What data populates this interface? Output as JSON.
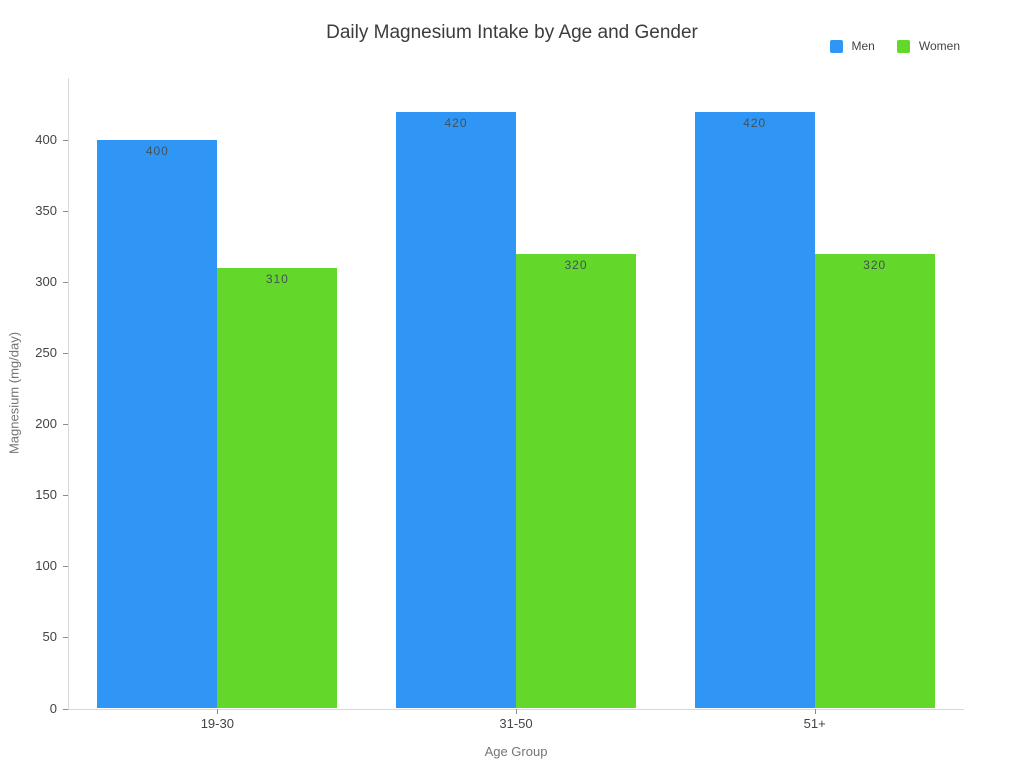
{
  "chart_data": {
    "type": "bar",
    "title": "Daily Magnesium Intake by Age and Gender",
    "xlabel": "Age Group",
    "ylabel": "Magnesium (mg/day)",
    "categories": [
      "19-30",
      "31-50",
      "51+"
    ],
    "series": [
      {
        "name": "Men",
        "color": "#3096F5",
        "values": [
          400,
          420,
          420
        ]
      },
      {
        "name": "Women",
        "color": "#63D82A",
        "values": [
          310,
          320,
          320
        ]
      }
    ],
    "bar_value_labels": [
      [
        400,
        420,
        420
      ],
      [
        310,
        320,
        320
      ]
    ],
    "yticks": [
      0,
      50,
      100,
      150,
      200,
      250,
      300,
      350,
      400
    ],
    "ylim": [
      0,
      444
    ],
    "grid": false,
    "legend_position": "top-right",
    "bar_label_placement": "inside-top"
  },
  "colors": {
    "men_bar": "#3096F5",
    "women_bar": "#63D82A",
    "title_text": "#3C3C3C",
    "tick_label_text": "#444444",
    "axis_title_text": "#757575",
    "bar_value_text": "#44505A",
    "axis_line": "#D9D9D9",
    "tick_mark": "#8C8C8C",
    "background": "#FFFFFF"
  }
}
